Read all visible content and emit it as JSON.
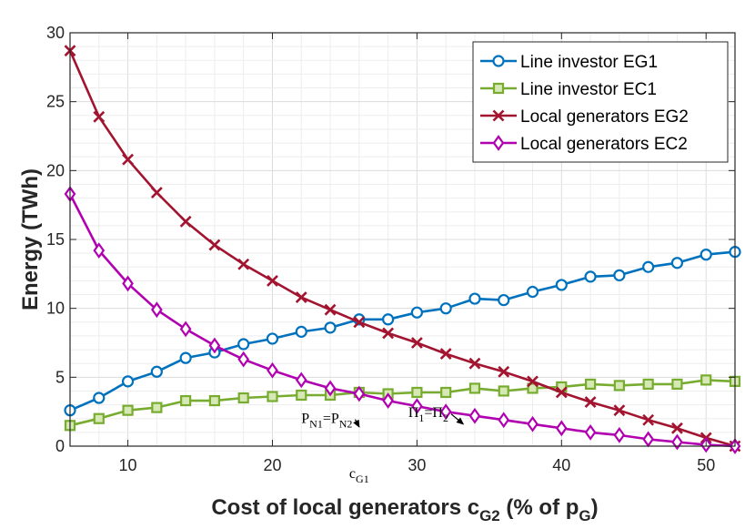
{
  "chart_data": {
    "type": "line",
    "title": "",
    "xlabel": {
      "main": "Cost of local generators c",
      "sub": "G2",
      "tail": " (% of p",
      "sub2": "G",
      "end": ")"
    },
    "ylabel": "Energy (TWh)",
    "xlim": [
      6,
      52
    ],
    "ylim": [
      0,
      30
    ],
    "xticks": [
      10,
      20,
      30,
      40,
      50
    ],
    "yticks": [
      0,
      5,
      10,
      15,
      20,
      25,
      30
    ],
    "grid": true,
    "legend_position": "top-right",
    "x": [
      6,
      8,
      10,
      12,
      14,
      16,
      18,
      20,
      22,
      24,
      26,
      28,
      30,
      32,
      34,
      36,
      38,
      40,
      42,
      44,
      46,
      48,
      50,
      52
    ],
    "series": [
      {
        "name": "Line investor EG1",
        "color": "#0072BD",
        "marker": "circle",
        "values": [
          2.6,
          3.5,
          4.7,
          5.4,
          6.4,
          6.8,
          7.4,
          7.8,
          8.3,
          8.6,
          9.2,
          9.2,
          9.7,
          10.0,
          10.7,
          10.6,
          11.2,
          11.7,
          12.3,
          12.4,
          13.0,
          13.3,
          13.9,
          14.1
        ]
      },
      {
        "name": "Line investor EC1",
        "color": "#77AC30",
        "marker": "square",
        "values": [
          1.5,
          2.0,
          2.6,
          2.8,
          3.3,
          3.3,
          3.5,
          3.6,
          3.7,
          3.7,
          3.9,
          3.8,
          3.9,
          3.9,
          4.2,
          4.0,
          4.2,
          4.3,
          4.5,
          4.4,
          4.5,
          4.5,
          4.8,
          4.7
        ]
      },
      {
        "name": "Local generators EG2",
        "color": "#A2142F",
        "marker": "x",
        "values": [
          28.7,
          23.9,
          20.8,
          18.4,
          16.3,
          14.6,
          13.2,
          12.0,
          10.8,
          9.9,
          9.0,
          8.2,
          7.5,
          6.7,
          6.0,
          5.4,
          4.7,
          3.9,
          3.2,
          2.6,
          1.9,
          1.3,
          0.6,
          0.0
        ]
      },
      {
        "name": "Local generators EC2",
        "color": "#B000B0",
        "marker": "diamond",
        "values": [
          18.3,
          14.2,
          11.8,
          9.9,
          8.5,
          7.3,
          6.3,
          5.5,
          4.8,
          4.2,
          3.8,
          3.3,
          2.9,
          2.5,
          2.2,
          1.9,
          1.6,
          1.3,
          1.0,
          0.8,
          0.5,
          0.3,
          0.1,
          0.0
        ]
      }
    ],
    "annotations": [
      {
        "id": "pn",
        "x": 22,
        "y": 1.7,
        "parts": [
          [
            "P",
            ""
          ],
          [
            "N1",
            "sub"
          ],
          [
            "=P",
            ""
          ],
          [
            "N2",
            "sub"
          ]
        ],
        "arrow_to": [
          26,
          1.4
        ]
      },
      {
        "id": "pi",
        "x": 29.4,
        "y": 2.1,
        "parts": [
          [
            "Π",
            ""
          ],
          [
            "1",
            "sub"
          ],
          [
            "=Π",
            ""
          ],
          [
            "2",
            "sub"
          ]
        ],
        "arrow_to": [
          33.2,
          1.6
        ]
      },
      {
        "id": "cg1",
        "x": 26,
        "y": -2.3,
        "parts": [
          [
            "c",
            ""
          ],
          [
            "G1",
            "sub"
          ]
        ]
      }
    ]
  }
}
